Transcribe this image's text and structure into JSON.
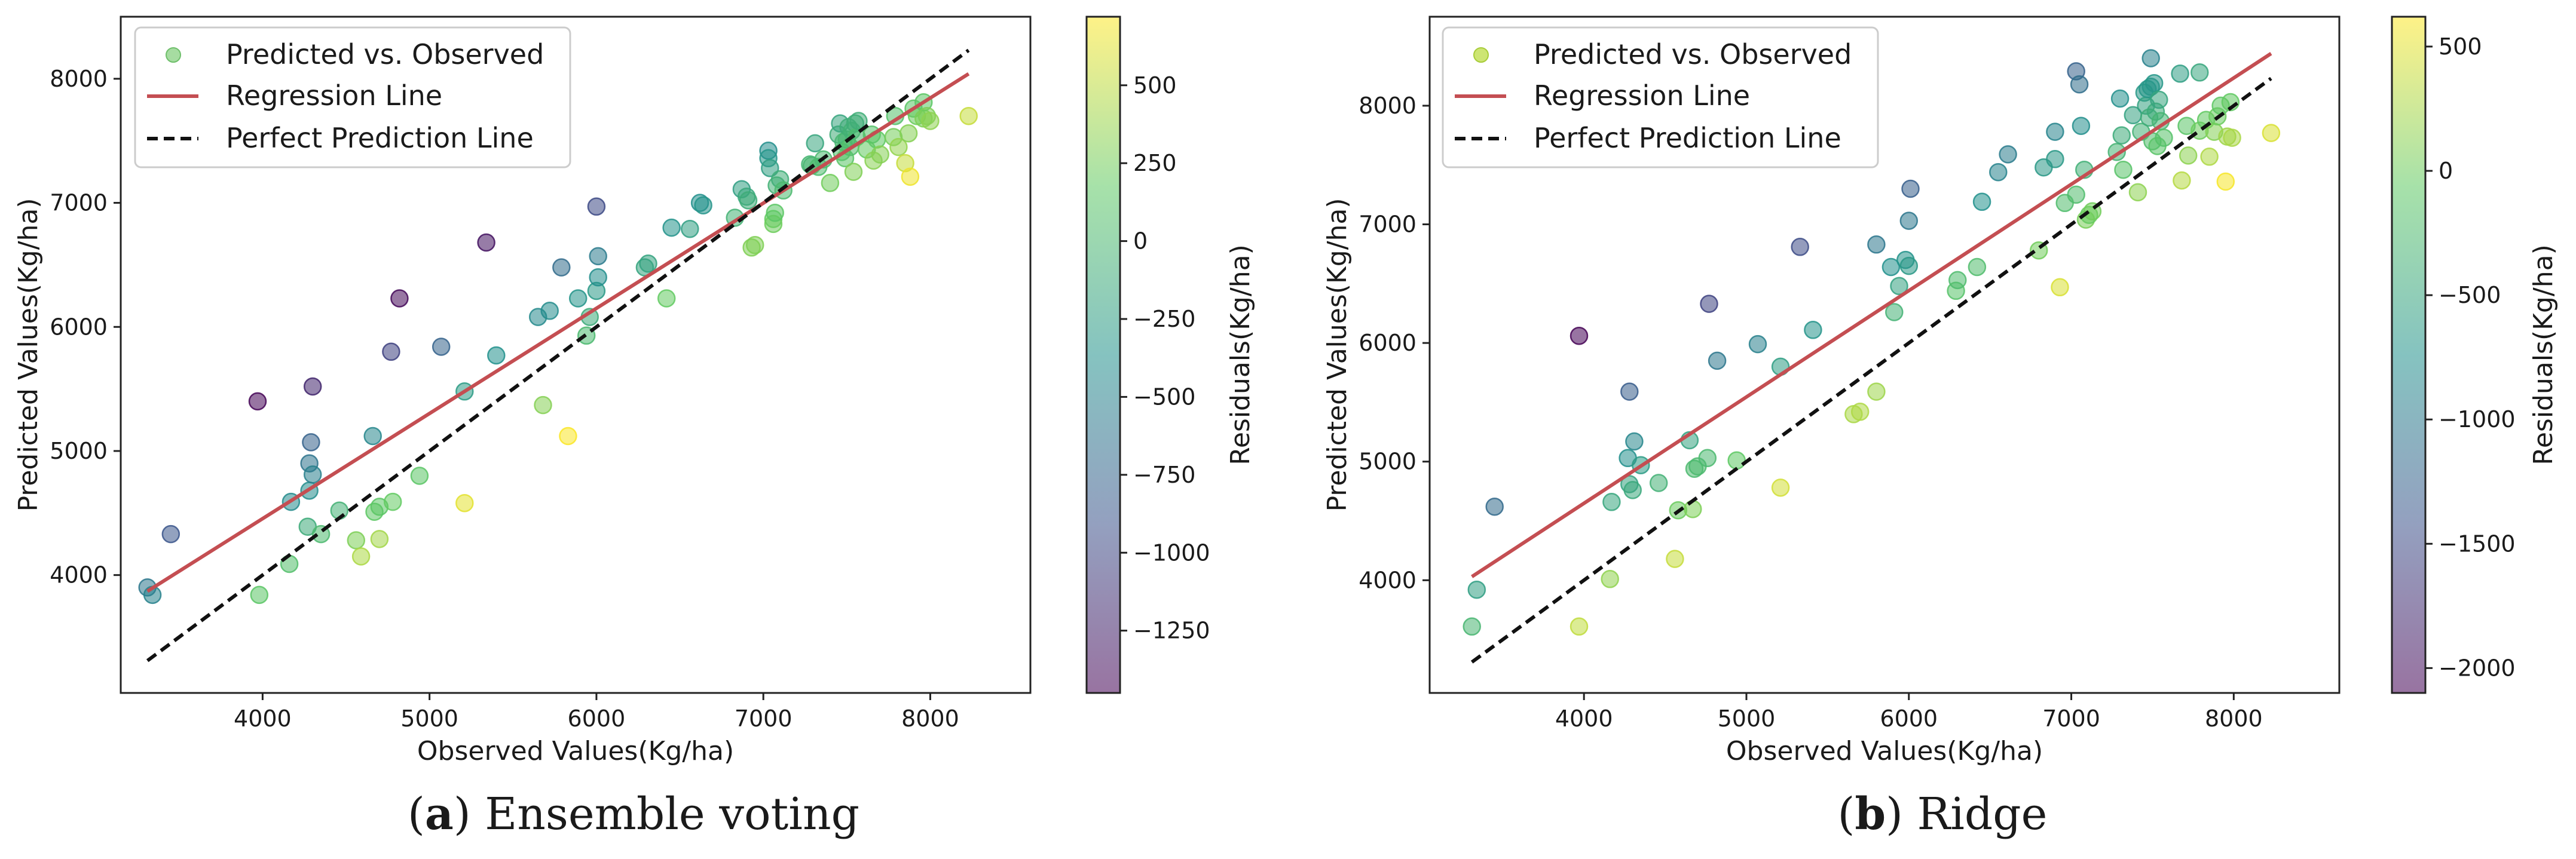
{
  "chart_data": [
    {
      "type": "scatter",
      "caption": {
        "letter": "a",
        "text": " Ensemble voting"
      },
      "xlabel": "Observed Values(Kg/ha)",
      "ylabel": "Predicted Values(Kg/ha)",
      "xlim": [
        3150,
        8600
      ],
      "ylim": [
        3050,
        8500
      ],
      "xticks": [
        4000,
        5000,
        6000,
        7000,
        8000
      ],
      "yticks": [
        4000,
        5000,
        6000,
        7000,
        8000
      ],
      "legend": {
        "placement": "upper-left",
        "entries": [
          "Predicted vs. Observed",
          "Regression Line",
          "Perfect Prediction Line"
        ]
      },
      "colorbar": {
        "label": "Residuals(Kg/ha)",
        "range": [
          -1450,
          720
        ],
        "ticks": [
          500,
          250,
          0,
          -250,
          -500,
          -750,
          -1000,
          -1250
        ],
        "tick_labels": [
          "500",
          "250",
          "0",
          "−250",
          "−500",
          "−750",
          "−1000",
          "−1250"
        ]
      },
      "regression_line": {
        "x": [
          3310,
          8230
        ],
        "y": [
          3870,
          8040
        ]
      },
      "perfect_line": {
        "x": [
          3310,
          8230
        ],
        "y": [
          3310,
          8230
        ]
      },
      "points": [
        [
          3310,
          3900,
          -590
        ],
        [
          3340,
          3840,
          -500
        ],
        [
          3450,
          4330,
          -880
        ],
        [
          3980,
          3840,
          140
        ],
        [
          3970,
          5400,
          -1430
        ],
        [
          4160,
          4090,
          70
        ],
        [
          4170,
          4590,
          -420
        ],
        [
          4270,
          4390,
          -120
        ],
        [
          4280,
          4680,
          -400
        ],
        [
          4280,
          4900,
          -620
        ],
        [
          4290,
          5070,
          -780
        ],
        [
          4300,
          5520,
          -1220
        ],
        [
          4300,
          4810,
          -510
        ],
        [
          4350,
          4330,
          20
        ],
        [
          4460,
          4520,
          -60
        ],
        [
          4560,
          4280,
          280
        ],
        [
          4590,
          4150,
          440
        ],
        [
          4660,
          5120,
          -460
        ],
        [
          4670,
          4510,
          160
        ],
        [
          4700,
          4290,
          410
        ],
        [
          4700,
          4550,
          150
        ],
        [
          4780,
          4590,
          190
        ],
        [
          4770,
          5800,
          -1030
        ],
        [
          4820,
          6230,
          -1410
        ],
        [
          4940,
          4800,
          140
        ],
        [
          5070,
          5840,
          -770
        ],
        [
          5210,
          4580,
          630
        ],
        [
          5210,
          5480,
          -270
        ],
        [
          5340,
          6680,
          -1340
        ],
        [
          5400,
          5770,
          -370
        ],
        [
          5650,
          6080,
          -430
        ],
        [
          5680,
          5370,
          310
        ],
        [
          5720,
          6130,
          -410
        ],
        [
          5790,
          6480,
          -690
        ],
        [
          5830,
          5120,
          710
        ],
        [
          5890,
          6230,
          -340
        ],
        [
          5940,
          5930,
          10
        ],
        [
          5960,
          6080,
          -120
        ],
        [
          6000,
          6970,
          -970
        ],
        [
          6000,
          6290,
          -290
        ],
        [
          6010,
          6400,
          -390
        ],
        [
          6010,
          6570,
          -560
        ],
        [
          6290,
          6480,
          -190
        ],
        [
          6310,
          6510,
          -200
        ],
        [
          6420,
          6230,
          190
        ],
        [
          6450,
          6800,
          -350
        ],
        [
          6560,
          6790,
          -230
        ],
        [
          6620,
          7000,
          -380
        ],
        [
          6640,
          6980,
          -340
        ],
        [
          6830,
          6880,
          -50
        ],
        [
          6870,
          7110,
          -240
        ],
        [
          6900,
          7050,
          -150
        ],
        [
          6910,
          7020,
          -110
        ],
        [
          6930,
          6640,
          290
        ],
        [
          6950,
          6660,
          290
        ],
        [
          7030,
          7420,
          -390
        ],
        [
          7030,
          7360,
          -330
        ],
        [
          7040,
          7280,
          -240
        ],
        [
          7060,
          6870,
          190
        ],
        [
          7060,
          6830,
          230
        ],
        [
          7070,
          6920,
          150
        ],
        [
          7080,
          7140,
          -60
        ],
        [
          7100,
          7190,
          -90
        ],
        [
          7120,
          7100,
          20
        ],
        [
          7280,
          7310,
          -30
        ],
        [
          7290,
          7300,
          -10
        ],
        [
          7310,
          7480,
          -170
        ],
        [
          7330,
          7290,
          40
        ],
        [
          7360,
          7350,
          10
        ],
        [
          7400,
          7160,
          240
        ],
        [
          7450,
          7550,
          -100
        ],
        [
          7460,
          7640,
          -180
        ],
        [
          7470,
          7410,
          60
        ],
        [
          7480,
          7490,
          -10
        ],
        [
          7490,
          7360,
          130
        ],
        [
          7500,
          7510,
          -10
        ],
        [
          7510,
          7610,
          -100
        ],
        [
          7520,
          7450,
          70
        ],
        [
          7530,
          7580,
          -50
        ],
        [
          7540,
          7250,
          290
        ],
        [
          7550,
          7640,
          -90
        ],
        [
          7560,
          7530,
          30
        ],
        [
          7570,
          7660,
          -90
        ],
        [
          7620,
          7430,
          190
        ],
        [
          7650,
          7550,
          100
        ],
        [
          7660,
          7340,
          320
        ],
        [
          7680,
          7510,
          170
        ],
        [
          7700,
          7390,
          310
        ],
        [
          7780,
          7530,
          250
        ],
        [
          7790,
          7700,
          90
        ],
        [
          7810,
          7450,
          360
        ],
        [
          7850,
          7320,
          530
        ],
        [
          7870,
          7560,
          310
        ],
        [
          7880,
          7210,
          670
        ],
        [
          7900,
          7760,
          140
        ],
        [
          7920,
          7700,
          220
        ],
        [
          7960,
          7680,
          280
        ],
        [
          7960,
          7810,
          150
        ],
        [
          7980,
          7700,
          280
        ],
        [
          8000,
          7660,
          340
        ],
        [
          8230,
          7700,
          530
        ]
      ]
    },
    {
      "type": "scatter",
      "caption": {
        "letter": "b",
        "text": " Ridge"
      },
      "xlabel": "Observed Values(Kg/ha)",
      "ylabel": "Predicted Values(Kg/ha)",
      "xlim": [
        3050,
        8650
      ],
      "ylim": [
        3050,
        8750
      ],
      "xticks": [
        4000,
        5000,
        6000,
        7000,
        8000
      ],
      "yticks": [
        4000,
        5000,
        6000,
        7000,
        8000
      ],
      "legend": {
        "placement": "upper-left",
        "entries": [
          "Predicted vs. Observed",
          "Regression Line",
          "Perfect Prediction Line"
        ]
      },
      "colorbar": {
        "label": "Residuals(Kg/ha)",
        "range": [
          -2100,
          620
        ],
        "ticks": [
          500,
          0,
          -500,
          -1000,
          -1500,
          -2000
        ],
        "tick_labels": [
          "500",
          "0",
          "−500",
          "−1000",
          "−1500",
          "−2000"
        ]
      },
      "regression_line": {
        "x": [
          3310,
          8230
        ],
        "y": [
          4030,
          8440
        ]
      },
      "perfect_line": {
        "x": [
          3310,
          8230
        ],
        "y": [
          3310,
          8230
        ]
      },
      "points": [
        [
          3310,
          3610,
          -300
        ],
        [
          3340,
          3920,
          -580
        ],
        [
          3450,
          4620,
          -1170
        ],
        [
          3970,
          3610,
          360
        ],
        [
          3970,
          6060,
          -2090
        ],
        [
          4160,
          4010,
          150
        ],
        [
          4170,
          4660,
          -490
        ],
        [
          4270,
          5030,
          -760
        ],
        [
          4280,
          4810,
          -530
        ],
        [
          4280,
          5590,
          -1310
        ],
        [
          4300,
          4760,
          -460
        ],
        [
          4310,
          5170,
          -860
        ],
        [
          4350,
          4970,
          -620
        ],
        [
          4460,
          4820,
          -360
        ],
        [
          4560,
          4180,
          380
        ],
        [
          4580,
          4590,
          -10
        ],
        [
          4650,
          5180,
          -530
        ],
        [
          4670,
          4600,
          70
        ],
        [
          4680,
          4940,
          -260
        ],
        [
          4700,
          4960,
          -260
        ],
        [
          4760,
          5030,
          -270
        ],
        [
          4770,
          6330,
          -1560
        ],
        [
          4820,
          5850,
          -1030
        ],
        [
          4940,
          5010,
          -70
        ],
        [
          5070,
          5990,
          -920
        ],
        [
          5210,
          4780,
          430
        ],
        [
          5210,
          5800,
          -590
        ],
        [
          5330,
          6810,
          -1480
        ],
        [
          5410,
          6110,
          -700
        ],
        [
          5660,
          5400,
          260
        ],
        [
          5700,
          5420,
          280
        ],
        [
          5800,
          5590,
          210
        ],
        [
          5800,
          6830,
          -1030
        ],
        [
          5890,
          6640,
          -750
        ],
        [
          5910,
          6260,
          -350
        ],
        [
          5940,
          6480,
          -540
        ],
        [
          5980,
          6700,
          -720
        ],
        [
          6000,
          6650,
          -650
        ],
        [
          6000,
          7030,
          -1030
        ],
        [
          6010,
          7300,
          -1290
        ],
        [
          6290,
          6440,
          -150
        ],
        [
          6300,
          6530,
          -230
        ],
        [
          6420,
          6640,
          -220
        ],
        [
          6450,
          7190,
          -740
        ],
        [
          6550,
          7440,
          -890
        ],
        [
          6610,
          7590,
          -980
        ],
        [
          6800,
          6780,
          20
        ],
        [
          6830,
          7480,
          -650
        ],
        [
          6900,
          7550,
          -650
        ],
        [
          6900,
          7780,
          -880
        ],
        [
          6930,
          6470,
          460
        ],
        [
          6960,
          7180,
          -220
        ],
        [
          7030,
          7250,
          -220
        ],
        [
          7030,
          8290,
          -1260
        ],
        [
          7050,
          8180,
          -1130
        ],
        [
          7060,
          7830,
          -770
        ],
        [
          7080,
          7460,
          -380
        ],
        [
          7090,
          7040,
          50
        ],
        [
          7110,
          7080,
          -30
        ],
        [
          7130,
          7110,
          20
        ],
        [
          7280,
          7610,
          -330
        ],
        [
          7300,
          8060,
          -760
        ],
        [
          7310,
          7750,
          -440
        ],
        [
          7320,
          7460,
          -140
        ],
        [
          7380,
          7920,
          -540
        ],
        [
          7410,
          7270,
          140
        ],
        [
          7430,
          7780,
          -350
        ],
        [
          7450,
          8110,
          -660
        ],
        [
          7460,
          8000,
          -540
        ],
        [
          7470,
          8140,
          -670
        ],
        [
          7480,
          7900,
          -420
        ],
        [
          7490,
          8400,
          -910
        ],
        [
          7490,
          8160,
          -670
        ],
        [
          7500,
          7700,
          -200
        ],
        [
          7510,
          8190,
          -680
        ],
        [
          7520,
          7950,
          -430
        ],
        [
          7530,
          7660,
          -130
        ],
        [
          7540,
          8050,
          -510
        ],
        [
          7550,
          7870,
          -320
        ],
        [
          7570,
          7730,
          -160
        ],
        [
          7670,
          8270,
          -600
        ],
        [
          7680,
          7370,
          310
        ],
        [
          7710,
          7830,
          -120
        ],
        [
          7720,
          7580,
          140
        ],
        [
          7790,
          7790,
          0
        ],
        [
          7790,
          8280,
          -490
        ],
        [
          7830,
          7880,
          -50
        ],
        [
          7850,
          7570,
          280
        ],
        [
          7880,
          7780,
          100
        ],
        [
          7900,
          7910,
          -10
        ],
        [
          7920,
          8000,
          -80
        ],
        [
          7950,
          7360,
          590
        ],
        [
          7960,
          7740,
          220
        ],
        [
          7980,
          8030,
          -50
        ],
        [
          7990,
          7730,
          260
        ],
        [
          8230,
          7770,
          460
        ]
      ]
    }
  ]
}
